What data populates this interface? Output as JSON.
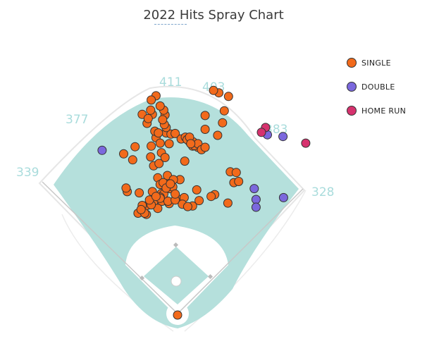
{
  "chart_data": {
    "type": "scatter",
    "title": "2022 Hits Spray Chart",
    "legend": {
      "position": "top-right",
      "items": [
        {
          "label": "SINGLE",
          "color": "#f26a1b"
        },
        {
          "label": "DOUBLE",
          "color": "#7b68dd"
        },
        {
          "label": "HOME RUN",
          "color": "#d6326e"
        }
      ]
    },
    "fence_distances": [
      {
        "label": "339",
        "side": "left-field line"
      },
      {
        "label": "377",
        "side": "left-center"
      },
      {
        "label": "411",
        "side": "center"
      },
      {
        "label": "403",
        "side": "right-center"
      },
      {
        "label": "383",
        "side": "right-center"
      },
      {
        "label": "328",
        "side": "right-field line"
      }
    ],
    "field_colors": {
      "grass": "#b5e0dc",
      "dirt": "#ffffff",
      "line": "#c8c8c8"
    },
    "series": [
      {
        "name": "SINGLE",
        "color": "#f26a1b",
        "points": [
          [
            -66,
            170
          ],
          [
            -51,
            183
          ],
          [
            -52,
            168
          ],
          [
            -40,
            189
          ],
          [
            -59,
            183
          ],
          [
            -64,
            204
          ],
          [
            -84,
            206
          ],
          [
            -86,
            212
          ],
          [
            -27,
            203
          ],
          [
            -18,
            219
          ],
          [
            -33,
            229
          ],
          [
            -17,
            233
          ],
          [
            -19,
            213
          ],
          [
            -40,
            249
          ],
          [
            -45,
            264
          ],
          [
            -44,
            282
          ],
          [
            -71,
            281
          ],
          [
            -90,
            269
          ],
          [
            -75,
            259
          ],
          [
            -27,
            271
          ],
          [
            -31,
            253
          ],
          [
            -21,
            263
          ],
          [
            -14,
            286
          ],
          [
            -36,
            296
          ],
          [
            -19,
            304
          ],
          [
            -11,
            302
          ],
          [
            -4,
            303
          ],
          [
            6,
            294
          ],
          [
            13,
            297
          ],
          [
            -19,
            313
          ],
          [
            -22,
            318
          ],
          [
            -42,
            335
          ],
          [
            -45,
            342
          ],
          [
            -59,
            335
          ],
          [
            -51,
            320
          ],
          [
            -49,
            328
          ],
          [
            -21,
            334
          ],
          [
            -23,
            342
          ],
          [
            -25,
            326
          ],
          [
            -29,
            349
          ],
          [
            -36,
            366
          ],
          [
            -44,
            359
          ],
          [
            -38,
            307
          ],
          [
            -32,
            304
          ],
          [
            -29,
            287
          ],
          [
            -29,
            218
          ],
          [
            -26,
            190
          ],
          [
            -14,
            186
          ],
          [
            12,
            257
          ],
          [
            21,
            290
          ],
          [
            25,
            282
          ],
          [
            20,
            289
          ],
          [
            26,
            289
          ],
          [
            16,
            293
          ],
          [
            20,
            297
          ],
          [
            34,
            280
          ],
          [
            28,
            283
          ],
          [
            34,
            286
          ],
          [
            40,
            276
          ],
          [
            46,
            280
          ],
          [
            46,
            310
          ],
          [
            75,
            321
          ],
          [
            78,
            341
          ],
          [
            85,
            365
          ],
          [
            69,
            371
          ],
          [
            60,
            375
          ],
          [
            46,
            333
          ],
          [
            67,
            300
          ],
          [
            88,
            239
          ],
          [
            94,
            221
          ],
          [
            102,
            223
          ],
          [
            98,
            238
          ],
          [
            84,
            187
          ],
          [
            62,
            201
          ],
          [
            56,
            198
          ],
          [
            32,
            209
          ],
          [
            36,
            191
          ],
          [
            25,
            182
          ],
          [
            -16,
            190
          ],
          [
            3,
            193
          ],
          [
            11,
            196
          ],
          [
            4,
            226
          ],
          [
            -23,
            202
          ],
          [
            -29,
            197
          ],
          [
            -24,
            221
          ],
          [
            -13,
            211
          ],
          [
            -8,
            214
          ],
          [
            -7,
            226
          ],
          [
            -33,
            178
          ],
          [
            -44,
            184
          ],
          [
            -55,
            170
          ],
          [
            -61,
            176
          ],
          [
            -42,
            206
          ],
          [
            -47,
            192
          ],
          [
            -29,
            195
          ],
          [
            -4,
            192
          ],
          [
            8,
            185
          ],
          [
            17,
            181
          ],
          [
            -36,
            198
          ],
          [
            -19,
            212
          ],
          [
            -12,
            219
          ],
          [
            -4,
            202
          ],
          [
            22,
            286
          ],
          [
            0,
            0
          ]
        ]
      },
      {
        "name": "DOUBLE",
        "color": "#7b68dd",
        "points": [
          [
            -126,
            275
          ],
          [
            128,
            211
          ],
          [
            131,
            193
          ],
          [
            131,
            180
          ],
          [
            177,
            196
          ],
          [
            176,
            298
          ],
          [
            150,
            301
          ]
        ]
      },
      {
        "name": "HOME RUN",
        "color": "#d6326e",
        "points": [
          [
            147,
            313
          ],
          [
            140,
            305
          ],
          [
            214,
            287
          ]
        ]
      }
    ]
  }
}
